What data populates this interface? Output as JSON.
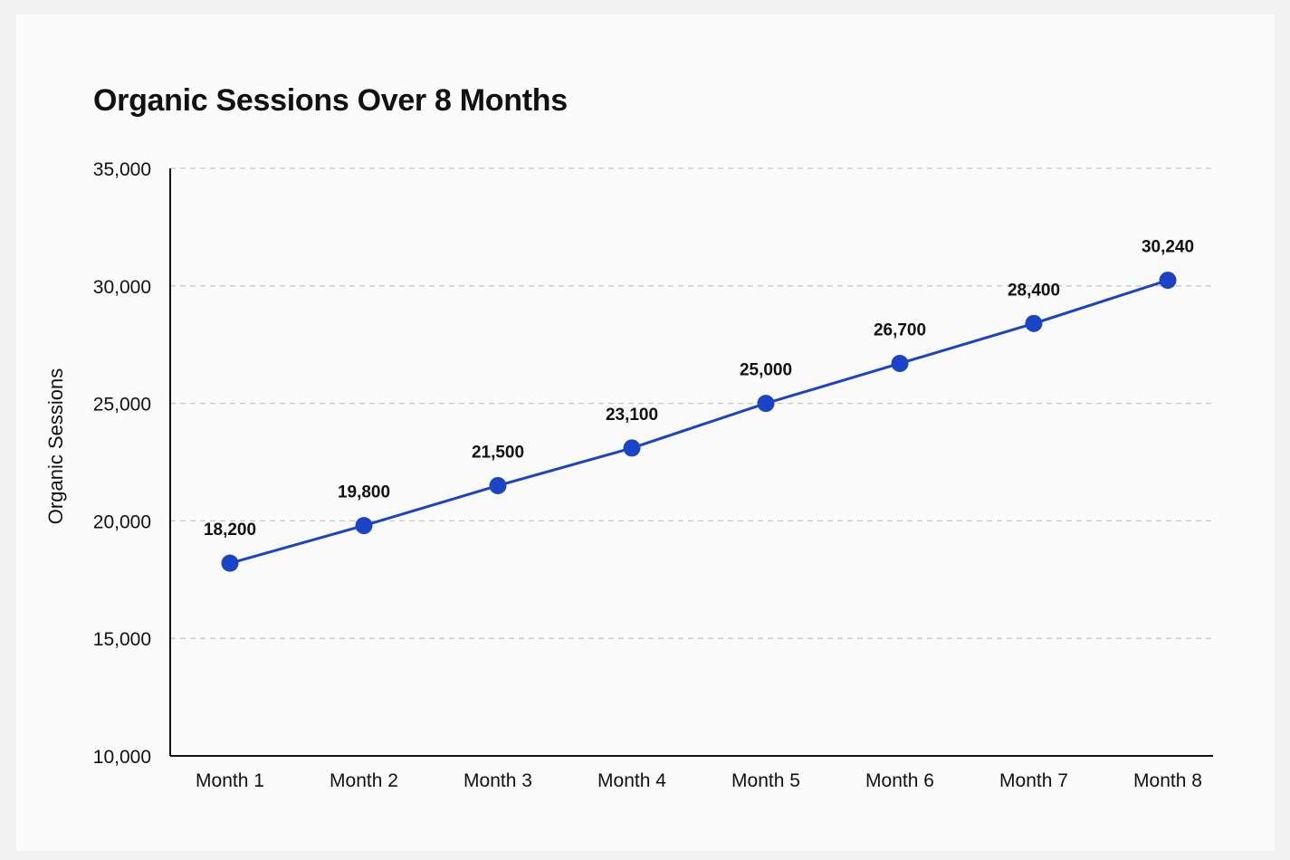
{
  "chart_data": {
    "type": "line",
    "title": "Organic Sessions Over 8 Months",
    "xlabel": "",
    "ylabel": "Organic Sessions",
    "categories": [
      "Month 1",
      "Month 2",
      "Month 3",
      "Month 4",
      "Month 5",
      "Month 6",
      "Month 7",
      "Month 8"
    ],
    "series": [
      {
        "values": [
          18200,
          19800,
          21500,
          23100,
          25000,
          26700,
          28400,
          30240
        ],
        "color": "#1a44c8"
      }
    ],
    "data_labels": [
      "18,200",
      "19,800",
      "21,500",
      "23,100",
      "25,000",
      "26,700",
      "28,400",
      "30,240"
    ],
    "ylim": [
      10000,
      35000
    ],
    "yticks": [
      10000,
      15000,
      20000,
      25000,
      30000,
      35000
    ],
    "ytick_labels": [
      "10,000",
      "15,000",
      "20,000",
      "25,000",
      "30,000",
      "35,000"
    ],
    "grid": "horizontal-dashed",
    "legend": "none"
  }
}
